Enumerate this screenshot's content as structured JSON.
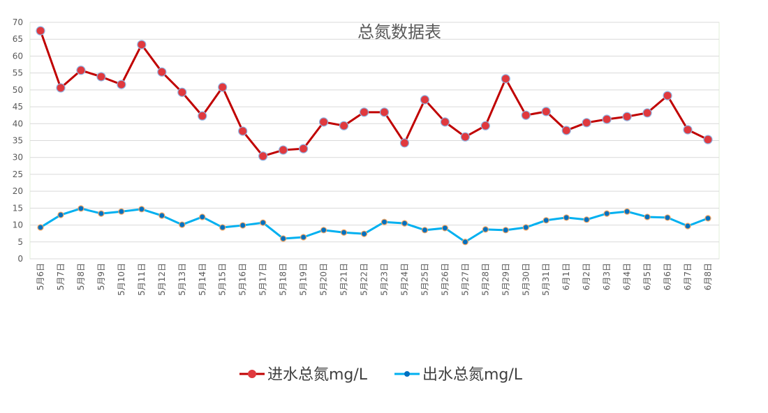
{
  "chart_data": {
    "type": "line",
    "title": "总氮数据表",
    "xlabel": "",
    "ylabel": "",
    "ylim": [
      0,
      70
    ],
    "yticks": [
      0,
      5,
      10,
      15,
      20,
      25,
      30,
      35,
      40,
      45,
      50,
      55,
      60,
      65,
      70
    ],
    "grid": true,
    "legend_position": "bottom",
    "categories": [
      "5月6日",
      "5月7日",
      "5月8日",
      "5月9日",
      "5月10日",
      "5月11日",
      "5月12日",
      "5月13日",
      "5月14日",
      "5月15日",
      "5月16日",
      "5月17日",
      "5月18日",
      "5月19日",
      "5月20日",
      "5月21日",
      "5月22日",
      "5月23日",
      "5月24日",
      "5月25日",
      "5月26日",
      "5月27日",
      "5月28日",
      "5月29日",
      "5月30日",
      "5月31日",
      "6月1日",
      "6月2日",
      "6月3日",
      "6月4日",
      "6月5日",
      "6月6日",
      "6月7日",
      "6月8日"
    ],
    "series": [
      {
        "name": "进水总氮mg/L",
        "color": "#C00000",
        "marker_color": "#E0393E",
        "values": [
          67.5,
          50.6,
          55.8,
          53.9,
          51.6,
          63.4,
          55.3,
          49.3,
          42.3,
          50.8,
          37.8,
          30.4,
          32.2,
          32.6,
          40.5,
          39.4,
          43.4,
          43.4,
          34.3,
          47.1,
          40.5,
          36.1,
          39.4,
          53.3,
          42.5,
          43.6,
          38.0,
          40.3,
          41.3,
          42.1,
          43.2,
          48.3,
          38.2,
          35.3
        ]
      },
      {
        "name": "出水总氮mg/L",
        "color": "#00B0F0",
        "marker_color": "#0070C0",
        "values": [
          9.3,
          13.0,
          14.9,
          13.4,
          14.0,
          14.7,
          12.8,
          10.1,
          12.4,
          9.3,
          9.9,
          10.7,
          6.0,
          6.4,
          8.5,
          7.8,
          7.4,
          10.9,
          10.5,
          8.5,
          9.1,
          5.0,
          8.7,
          8.5,
          9.3,
          11.4,
          12.2,
          11.6,
          13.4,
          14.0,
          12.4,
          12.2,
          9.7,
          12.0
        ]
      }
    ]
  }
}
